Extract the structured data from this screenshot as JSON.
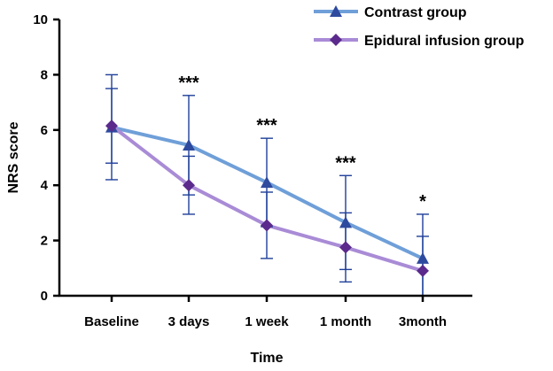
{
  "chart_data": {
    "type": "line",
    "title": "",
    "xlabel": "Time",
    "ylabel": "NRS score",
    "categories": [
      "Baseline",
      "3 days",
      "1 week",
      "1 month",
      "3month"
    ],
    "ylim": [
      0,
      10
    ],
    "yticks": [
      0,
      2,
      4,
      6,
      8,
      10
    ],
    "grid": false,
    "legend_position": "top-right",
    "series": [
      {
        "name": "Contrast group",
        "color": "#6f9fd8",
        "marker_color": "#2e4a9e",
        "marker": "triangle",
        "values": [
          6.1,
          5.45,
          4.1,
          2.65,
          1.35
        ],
        "errors": [
          1.9,
          1.8,
          1.6,
          1.7,
          1.6
        ]
      },
      {
        "name": "Epidural infusion group",
        "color": "#a98bd6",
        "marker_color": "#5b2a8c",
        "marker": "diamond",
        "values": [
          6.15,
          4.0,
          2.55,
          1.75,
          0.9
        ],
        "errors": [
          1.35,
          1.05,
          1.2,
          1.25,
          1.25
        ]
      }
    ],
    "annotations": [
      {
        "category": "3 days",
        "text": "***"
      },
      {
        "category": "1 week",
        "text": "***"
      },
      {
        "category": "1 month",
        "text": "***"
      },
      {
        "category": "3month",
        "text": "*"
      }
    ]
  }
}
